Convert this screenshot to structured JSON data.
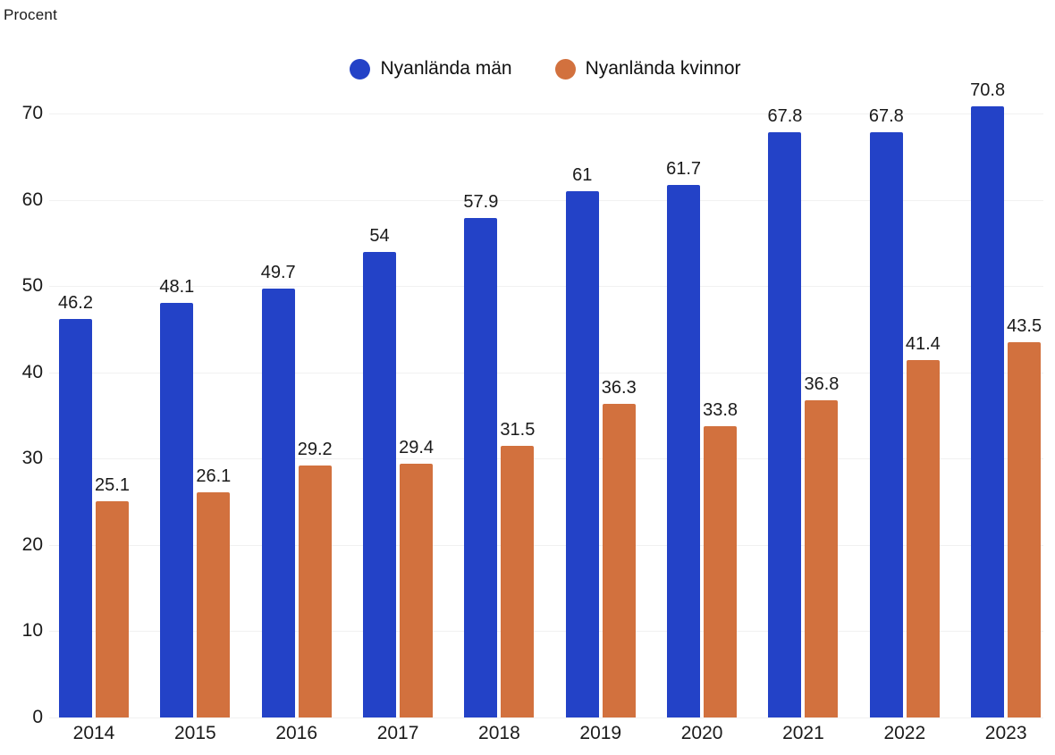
{
  "axis_title": "Procent",
  "colors": {
    "men": "#2342c7",
    "women": "#d2713e",
    "gridline": "#f1f1f1",
    "text": "#1a1a1a"
  },
  "legend": [
    {
      "label": "Nyanlända män",
      "color": "#2342c7"
    },
    {
      "label": "Nyanlända kvinnor",
      "color": "#d2713e"
    }
  ],
  "chart_data": {
    "type": "bar",
    "title": "",
    "ylabel": "Procent",
    "xlabel": "",
    "categories": [
      "2014",
      "2015",
      "2016",
      "2017",
      "2018",
      "2019",
      "2020",
      "2021",
      "2022",
      "2023"
    ],
    "series": [
      {
        "name": "Nyanlända män",
        "color": "#2342c7",
        "values": [
          46.2,
          48.1,
          49.7,
          54,
          57.9,
          61,
          61.7,
          67.8,
          67.8,
          70.8
        ]
      },
      {
        "name": "Nyanlända kvinnor",
        "color": "#d2713e",
        "values": [
          25.1,
          26.1,
          29.2,
          29.4,
          31.5,
          36.3,
          33.8,
          36.8,
          41.4,
          43.5
        ]
      }
    ],
    "ylim": [
      0,
      70
    ],
    "yticks": [
      0,
      10,
      20,
      30,
      40,
      50,
      60,
      70
    ],
    "grid": true,
    "data_labels": true,
    "legend_position": "top-center"
  }
}
